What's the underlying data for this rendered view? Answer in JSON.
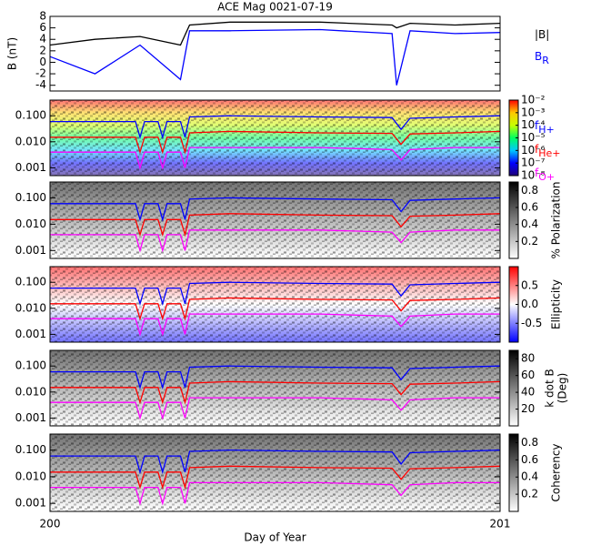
{
  "chart_data": [
    {
      "type": "line",
      "title": "ACE Mag 0021-07-19",
      "ylabel": "B (nT)",
      "x": [
        200,
        200.1,
        200.2,
        200.29,
        200.31,
        200.4,
        200.6,
        200.76,
        200.77,
        200.8,
        200.9,
        201
      ],
      "xlim": [
        200,
        201
      ],
      "ylim": [
        -5,
        8
      ],
      "yticks": [
        -4,
        -2,
        0,
        2,
        4,
        6,
        8
      ],
      "series": [
        {
          "name": "|B|",
          "color": "#000000",
          "values": [
            3,
            4,
            4.5,
            3,
            6.5,
            7,
            7,
            6.5,
            6,
            6.8,
            6.5,
            6.8
          ]
        },
        {
          "name": "B",
          "subscript": "R",
          "color": "#0000ff",
          "values": [
            1,
            -2,
            3,
            -3,
            5.5,
            5.5,
            5.7,
            5,
            -4,
            5.5,
            5,
            5.2
          ]
        }
      ]
    },
    {
      "type": "spectrogram",
      "log": true,
      "xlim": [
        200,
        201
      ],
      "ylim": [
        0.0005,
        0.4
      ],
      "yticks": [
        {
          "value": 0.1,
          "label": "0.100"
        },
        {
          "value": 0.01,
          "label": "0.010"
        },
        {
          "value": 0.001,
          "label": "0.001"
        }
      ],
      "colormap": [
        "#20007a",
        "#0000ff",
        "#00c8ff",
        "#00ff60",
        "#c8ff00",
        "#ffc800",
        "#ff0000"
      ],
      "clog": true,
      "clim": [
        1e-08,
        0.01
      ],
      "cticks": [
        {
          "value": 0.01,
          "label": "10⁻²"
        },
        {
          "value": 0.001,
          "label": "10⁻³"
        },
        {
          "value": 0.0001,
          "label": "10⁻⁴"
        },
        {
          "value": 1e-05,
          "label": "10⁻⁵"
        },
        {
          "value": 1e-06,
          "label": "10⁻⁶"
        },
        {
          "value": 1e-07,
          "label": "10⁻⁷"
        },
        {
          "value": 1e-08,
          "label": "10⁻⁸"
        }
      ],
      "legend": true,
      "x": [
        200,
        200.1,
        200.19,
        200.2,
        200.21,
        200.24,
        200.25,
        200.26,
        200.29,
        200.3,
        200.31,
        200.4,
        200.6,
        200.76,
        200.78,
        200.8,
        200.9,
        201
      ],
      "series": [
        {
          "name": "f",
          "subscript": "H+",
          "color": "#0000ff",
          "values": [
            0.06,
            0.06,
            0.06,
            0.015,
            0.06,
            0.06,
            0.015,
            0.06,
            0.06,
            0.015,
            0.09,
            0.1,
            0.09,
            0.085,
            0.03,
            0.08,
            0.09,
            0.1
          ]
        },
        {
          "name": "f",
          "subscript": "He+",
          "color": "#ff0000",
          "values": [
            0.015,
            0.015,
            0.015,
            0.004,
            0.015,
            0.015,
            0.004,
            0.015,
            0.015,
            0.004,
            0.022,
            0.025,
            0.022,
            0.021,
            0.008,
            0.02,
            0.022,
            0.025
          ]
        },
        {
          "name": "f",
          "subscript": "O+",
          "color": "#ff00ff",
          "values": [
            0.004,
            0.004,
            0.004,
            0.001,
            0.004,
            0.004,
            0.001,
            0.004,
            0.004,
            0.001,
            0.006,
            0.006,
            0.006,
            0.005,
            0.002,
            0.005,
            0.006,
            0.006
          ]
        }
      ]
    },
    {
      "type": "spectrogram",
      "log": true,
      "xlim": [
        200,
        201
      ],
      "ylim": [
        0.0005,
        0.4
      ],
      "yticks": [
        {
          "value": 0.1,
          "label": "0.100"
        },
        {
          "value": 0.01,
          "label": "0.010"
        },
        {
          "value": 0.001,
          "label": "0.001"
        }
      ],
      "colormap": [
        "#ffffff",
        "#000000"
      ],
      "clim": [
        0,
        0.9
      ],
      "cticks": [
        0.2,
        0.4,
        0.6,
        0.8
      ],
      "clabel": "% Polarization",
      "x": [
        200,
        200.1,
        200.19,
        200.2,
        200.21,
        200.24,
        200.25,
        200.26,
        200.29,
        200.3,
        200.31,
        200.4,
        200.6,
        200.76,
        200.78,
        200.8,
        200.9,
        201
      ],
      "series": [
        {
          "color": "#0000ff",
          "values": [
            0.06,
            0.06,
            0.06,
            0.015,
            0.06,
            0.06,
            0.015,
            0.06,
            0.06,
            0.015,
            0.09,
            0.1,
            0.09,
            0.085,
            0.03,
            0.08,
            0.09,
            0.1
          ]
        },
        {
          "color": "#ff0000",
          "values": [
            0.015,
            0.015,
            0.015,
            0.004,
            0.015,
            0.015,
            0.004,
            0.015,
            0.015,
            0.004,
            0.022,
            0.025,
            0.022,
            0.021,
            0.008,
            0.02,
            0.022,
            0.025
          ]
        },
        {
          "color": "#ff00ff",
          "values": [
            0.004,
            0.004,
            0.004,
            0.001,
            0.004,
            0.004,
            0.001,
            0.004,
            0.004,
            0.001,
            0.006,
            0.006,
            0.006,
            0.005,
            0.002,
            0.005,
            0.006,
            0.006
          ]
        }
      ]
    },
    {
      "type": "spectrogram",
      "log": true,
      "xlim": [
        200,
        201
      ],
      "ylim": [
        0.0005,
        0.4
      ],
      "yticks": [
        {
          "value": 0.1,
          "label": "0.100"
        },
        {
          "value": 0.01,
          "label": "0.010"
        },
        {
          "value": 0.001,
          "label": "0.001"
        }
      ],
      "colormap": [
        "#0000ff",
        "#ffffff",
        "#ff0000"
      ],
      "clim": [
        -1,
        1
      ],
      "cticks": [
        0.5,
        {
          "value": 0,
          "label": "0.0"
        },
        -0.5
      ],
      "clabel": "Ellipticity",
      "x": [
        200,
        200.1,
        200.19,
        200.2,
        200.21,
        200.24,
        200.25,
        200.26,
        200.29,
        200.3,
        200.31,
        200.4,
        200.6,
        200.76,
        200.78,
        200.8,
        200.9,
        201
      ],
      "series": [
        {
          "color": "#0000ff",
          "values": [
            0.06,
            0.06,
            0.06,
            0.015,
            0.06,
            0.06,
            0.015,
            0.06,
            0.06,
            0.015,
            0.09,
            0.1,
            0.09,
            0.085,
            0.03,
            0.08,
            0.09,
            0.1
          ]
        },
        {
          "color": "#ff0000",
          "values": [
            0.015,
            0.015,
            0.015,
            0.004,
            0.015,
            0.015,
            0.004,
            0.015,
            0.015,
            0.004,
            0.022,
            0.025,
            0.022,
            0.021,
            0.008,
            0.02,
            0.022,
            0.025
          ]
        },
        {
          "color": "#ff00ff",
          "values": [
            0.004,
            0.004,
            0.004,
            0.001,
            0.004,
            0.004,
            0.001,
            0.004,
            0.004,
            0.001,
            0.006,
            0.006,
            0.006,
            0.005,
            0.002,
            0.005,
            0.006,
            0.006
          ]
        }
      ]
    },
    {
      "type": "spectrogram",
      "log": true,
      "xlim": [
        200,
        201
      ],
      "ylim": [
        0.0005,
        0.4
      ],
      "yticks": [
        {
          "value": 0.1,
          "label": "0.100"
        },
        {
          "value": 0.01,
          "label": "0.010"
        },
        {
          "value": 0.001,
          "label": "0.001"
        }
      ],
      "colormap": [
        "#ffffff",
        "#000000"
      ],
      "clim": [
        0,
        90
      ],
      "cticks": [
        20,
        40,
        60,
        80
      ],
      "clabel": "k dot B",
      "clabel2": "(Deg)",
      "x": [
        200,
        200.1,
        200.19,
        200.2,
        200.21,
        200.24,
        200.25,
        200.26,
        200.29,
        200.3,
        200.31,
        200.4,
        200.6,
        200.76,
        200.78,
        200.8,
        200.9,
        201
      ],
      "series": [
        {
          "color": "#0000ff",
          "values": [
            0.06,
            0.06,
            0.06,
            0.015,
            0.06,
            0.06,
            0.015,
            0.06,
            0.06,
            0.015,
            0.09,
            0.1,
            0.09,
            0.085,
            0.03,
            0.08,
            0.09,
            0.1
          ]
        },
        {
          "color": "#ff0000",
          "values": [
            0.015,
            0.015,
            0.015,
            0.004,
            0.015,
            0.015,
            0.004,
            0.015,
            0.015,
            0.004,
            0.022,
            0.025,
            0.022,
            0.021,
            0.008,
            0.02,
            0.022,
            0.025
          ]
        },
        {
          "color": "#ff00ff",
          "values": [
            0.004,
            0.004,
            0.004,
            0.001,
            0.004,
            0.004,
            0.001,
            0.004,
            0.004,
            0.001,
            0.006,
            0.006,
            0.006,
            0.005,
            0.002,
            0.005,
            0.006,
            0.006
          ]
        }
      ]
    },
    {
      "type": "spectrogram",
      "log": true,
      "xlim": [
        200,
        201
      ],
      "ylim": [
        0.0005,
        0.4
      ],
      "yticks": [
        {
          "value": 0.1,
          "label": "0.100"
        },
        {
          "value": 0.01,
          "label": "0.010"
        },
        {
          "value": 0.001,
          "label": "0.001"
        }
      ],
      "colormap": [
        "#ffffff",
        "#000000"
      ],
      "clim": [
        0,
        0.9
      ],
      "cticks": [
        0.2,
        0.4,
        0.6,
        0.8
      ],
      "clabel": "Coherency",
      "xticks": [
        200,
        201
      ],
      "xlabel": "Day of Year",
      "x": [
        200,
        200.1,
        200.19,
        200.2,
        200.21,
        200.24,
        200.25,
        200.26,
        200.29,
        200.3,
        200.31,
        200.4,
        200.6,
        200.76,
        200.78,
        200.8,
        200.9,
        201
      ],
      "series": [
        {
          "color": "#0000ff",
          "values": [
            0.06,
            0.06,
            0.06,
            0.015,
            0.06,
            0.06,
            0.015,
            0.06,
            0.06,
            0.015,
            0.09,
            0.1,
            0.09,
            0.085,
            0.03,
            0.08,
            0.09,
            0.1
          ]
        },
        {
          "color": "#ff0000",
          "values": [
            0.015,
            0.015,
            0.015,
            0.004,
            0.015,
            0.015,
            0.004,
            0.015,
            0.015,
            0.004,
            0.022,
            0.025,
            0.022,
            0.021,
            0.008,
            0.02,
            0.022,
            0.025
          ]
        },
        {
          "color": "#ff00ff",
          "values": [
            0.004,
            0.004,
            0.004,
            0.001,
            0.004,
            0.004,
            0.001,
            0.004,
            0.004,
            0.001,
            0.006,
            0.006,
            0.006,
            0.005,
            0.002,
            0.005,
            0.006,
            0.006
          ]
        }
      ]
    }
  ]
}
